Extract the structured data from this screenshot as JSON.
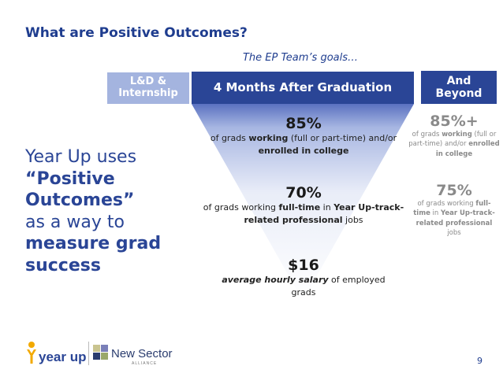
{
  "title": "What are Positive Outcomes?",
  "goals_caption": "The EP Team’s goals…",
  "tabs": {
    "ld": [
      "L&D &",
      "Internship"
    ],
    "four_months": "4 Months After Graduation",
    "beyond": [
      "And",
      "Beyond"
    ]
  },
  "funnel": [
    {
      "value": "85%",
      "desc_parts": [
        "of grads ",
        "working",
        " (full or part-time) and/or ",
        "enrolled in college"
      ]
    },
    {
      "value": "70%",
      "desc_parts": [
        "of grads working ",
        "full-time",
        " in ",
        "Year Up-track-related professional",
        " jobs"
      ]
    },
    {
      "value": "$16",
      "desc_parts": [
        "average hourly salary",
        " of employed grads"
      ]
    }
  ],
  "beyond": [
    {
      "value": "85%+",
      "desc_parts": [
        "of grads ",
        "working",
        " (full or part-time) and/or ",
        "enrolled in college"
      ]
    },
    {
      "value": "75%",
      "desc_parts": [
        "of grads working ",
        "full-time",
        " in ",
        "Year Up-track-related professional",
        " jobs"
      ]
    }
  ],
  "left_text": {
    "l1": "Year Up uses",
    "l2": "“Positive",
    "l3": "Outcomes”",
    "l4": "as a way to",
    "l5": "measure grad",
    "l6": "success"
  },
  "logos": {
    "yearup": "year up",
    "newsector": "New Sector",
    "newsector_sub": "ALLIANCE"
  },
  "page_number": "9",
  "colors": {
    "navy": "#2a4596",
    "light_blue": "#a4b4df",
    "title_blue": "#1f3d8f",
    "gray": "#8a8a8a"
  }
}
